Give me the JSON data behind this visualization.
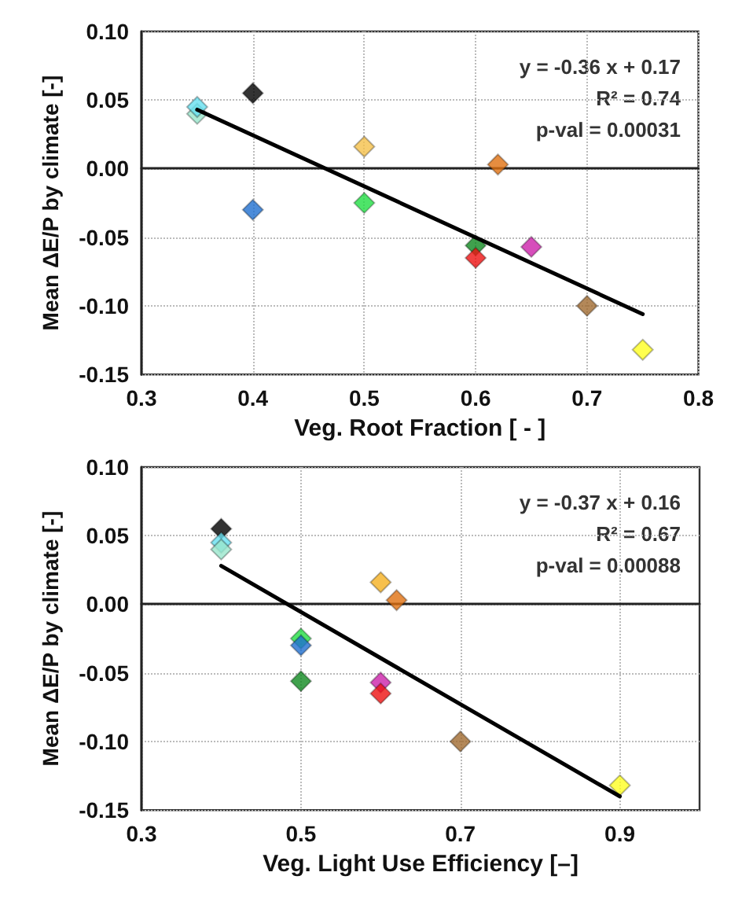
{
  "chart_data": [
    {
      "type": "scatter",
      "xlabel": "Veg. Root Fraction [ - ]",
      "ylabel": "Mean ΔE/P by climate [-]",
      "annotations": [
        "y = -0.36 x + 0.17",
        "R² = 0.74",
        "p-val = 0.00031"
      ],
      "xlim": [
        0.3,
        0.8
      ],
      "xticks": [
        0.3,
        0.4,
        0.5,
        0.6,
        0.7,
        0.8
      ],
      "ylim": [
        -0.15,
        0.1
      ],
      "yticks": [
        {
          "value": -0.15,
          "label": "-0.15"
        },
        {
          "value": -0.1,
          "label": "-0.10"
        },
        {
          "value": -0.05,
          "label": "-0.05"
        },
        {
          "value": 0,
          "label": "0.00"
        },
        {
          "value": 0.05,
          "label": "0.05"
        },
        {
          "value": 0.1,
          "label": "0.10"
        }
      ],
      "grid": true,
      "marker": "diamond",
      "line_style": "solid",
      "series": [
        {
          "x": [
            0.35,
            0.35,
            0.4,
            0.4,
            0.5,
            0.5,
            0.6,
            0.6,
            0.62,
            0.65,
            0.7,
            0.75
          ],
          "values": [
            0.04,
            0.045,
            0.055,
            -0.03,
            0.016,
            -0.025,
            -0.056,
            -0.065,
            0.003,
            -0.057,
            -0.1,
            -0.132
          ],
          "colors": [
            "#99e6cc",
            "#66e0f0",
            "#000000",
            "#1f6fd0",
            "#f5c04a",
            "#22dd44",
            "#108a20",
            "#ee1111",
            "#e07010",
            "#cc22aa",
            "#a06a30",
            "#ffff22"
          ]
        },
        {
          "type": "line",
          "marker": "none",
          "color": "#000000",
          "x": [
            0.35,
            0.75
          ],
          "values": [
            0.043,
            -0.106
          ]
        }
      ]
    },
    {
      "type": "scatter",
      "xlabel": "Veg. Light Use Efficiency [–]",
      "ylabel": "Mean ΔE/P by climate [-]",
      "annotations": [
        "y = -0.37 x + 0.16",
        "R² = 0.67",
        "p-val = 0.00088"
      ],
      "xlim": [
        0.3,
        1.0
      ],
      "xticks": [
        0.3,
        0.5,
        0.7,
        0.9
      ],
      "ylim": [
        -0.15,
        0.1
      ],
      "yticks": [
        {
          "value": -0.15,
          "label": "-0.15"
        },
        {
          "value": -0.1,
          "label": "-0.10"
        },
        {
          "value": -0.05,
          "label": "-0.05"
        },
        {
          "value": 0,
          "label": "0.00"
        },
        {
          "value": 0.05,
          "label": "0.05"
        },
        {
          "value": 0.1,
          "label": "0.10"
        }
      ],
      "grid": true,
      "marker": "diamond",
      "line_style": "solid",
      "series": [
        {
          "x": [
            0.4,
            0.4,
            0.4,
            0.5,
            0.5,
            0.5,
            0.6,
            0.62,
            0.6,
            0.6,
            0.7,
            0.9
          ],
          "values": [
            0.055,
            0.045,
            0.04,
            -0.025,
            -0.03,
            -0.056,
            0.016,
            0.003,
            -0.057,
            -0.065,
            -0.1,
            -0.132
          ],
          "colors": [
            "#000000",
            "#66e0f0",
            "#99e6cc",
            "#22dd44",
            "#1f6fd0",
            "#108a20",
            "#f5b020",
            "#e07010",
            "#cc22aa",
            "#ee1111",
            "#a06a30",
            "#ffff22"
          ]
        },
        {
          "type": "line",
          "marker": "none",
          "color": "#000000",
          "x": [
            0.4,
            0.9
          ],
          "values": [
            0.028,
            -0.14
          ]
        }
      ]
    }
  ]
}
